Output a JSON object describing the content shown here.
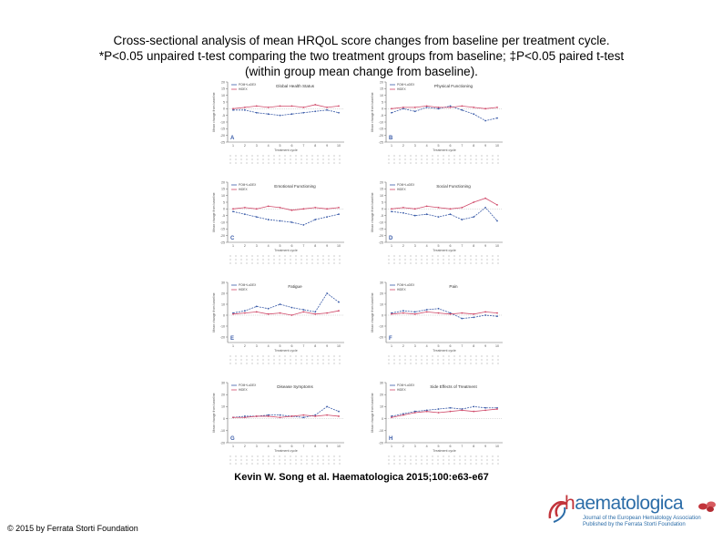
{
  "title": {
    "line1": "Cross-sectional analysis of mean HRQoL score changes from baseline per treatment cycle.",
    "line2": "*P<0.05 unpaired t-test comparing the two treatment groups from baseline; ‡P<0.05 paired t-test",
    "line3": "(within group mean change from baseline)."
  },
  "citation": "Kevin W. Song et al. Haematologica 2015;100:e63-e67",
  "copyright": "© 2015 by Ferrata Storti Foundation",
  "logo": {
    "word_h": "h",
    "word_rest": "aematologica",
    "tagline_1": "Journal of the European Hematology Association",
    "tagline_2": "Published by the Ferrata Storti Foundation"
  },
  "chart_data": [
    {
      "type": "line",
      "panel": "A",
      "title": "Global Health Status",
      "ylim": [
        -25,
        20
      ],
      "xlabel": "Treatment cycle",
      "categories": [
        "1",
        "2",
        "3",
        "4",
        "5",
        "6",
        "7",
        "8",
        "9",
        "10"
      ],
      "series": [
        {
          "name": "POM+LoDEX",
          "color": "#3a5ba8",
          "values": [
            -1,
            -1,
            -3,
            -4,
            -5,
            -4,
            -3,
            -2,
            -1,
            -3
          ]
        },
        {
          "name": "HiDEX",
          "color": "#d04a6a",
          "values": [
            0,
            1,
            2,
            1,
            2,
            2,
            1,
            3,
            1,
            2
          ]
        }
      ]
    },
    {
      "type": "line",
      "panel": "B",
      "title": "Physical Functioning",
      "ylim": [
        -25,
        20
      ],
      "xlabel": "Treatment cycle",
      "categories": [
        "1",
        "2",
        "3",
        "4",
        "5",
        "6",
        "7",
        "8",
        "9",
        "10"
      ],
      "series": [
        {
          "name": "POM+LoDEX",
          "color": "#3a5ba8",
          "values": [
            -3,
            0,
            -2,
            1,
            0,
            2,
            -1,
            -4,
            -9,
            -7
          ]
        },
        {
          "name": "HiDEX",
          "color": "#d04a6a",
          "values": [
            0,
            1,
            1,
            2,
            1,
            1,
            2,
            1,
            0,
            1
          ]
        }
      ]
    },
    {
      "type": "line",
      "panel": "C",
      "title": "Emotional Functioning",
      "ylim": [
        -25,
        20
      ],
      "xlabel": "Treatment cycle",
      "categories": [
        "1",
        "2",
        "3",
        "4",
        "5",
        "6",
        "7",
        "8",
        "9",
        "10"
      ],
      "series": [
        {
          "name": "POM+LoDEX",
          "color": "#3a5ba8",
          "values": [
            -2,
            -4,
            -6,
            -8,
            -9,
            -10,
            -12,
            -8,
            -6,
            -4
          ]
        },
        {
          "name": "HiDEX",
          "color": "#d04a6a",
          "values": [
            0,
            1,
            0,
            2,
            1,
            -1,
            0,
            1,
            0,
            1
          ]
        }
      ]
    },
    {
      "type": "line",
      "panel": "D",
      "title": "Social Functioning",
      "ylim": [
        -25,
        20
      ],
      "xlabel": "Treatment cycle",
      "categories": [
        "1",
        "2",
        "3",
        "4",
        "5",
        "6",
        "7",
        "8",
        "9",
        "10"
      ],
      "series": [
        {
          "name": "POM+LoDEX",
          "color": "#3a5ba8",
          "values": [
            -2,
            -3,
            -5,
            -4,
            -6,
            -4,
            -8,
            -6,
            1,
            -9
          ]
        },
        {
          "name": "HiDEX",
          "color": "#d04a6a",
          "values": [
            0,
            1,
            0,
            2,
            1,
            0,
            1,
            5,
            8,
            3
          ]
        }
      ]
    },
    {
      "type": "line",
      "panel": "E",
      "title": "Fatigue",
      "ylim": [
        -25,
        30
      ],
      "xlabel": "Treatment cycle",
      "categories": [
        "1",
        "2",
        "3",
        "4",
        "5",
        "6",
        "7",
        "8",
        "9",
        "10"
      ],
      "series": [
        {
          "name": "POM+LoDEX",
          "color": "#3a5ba8",
          "values": [
            2,
            4,
            8,
            6,
            10,
            7,
            5,
            3,
            20,
            12
          ]
        },
        {
          "name": "HiDEX",
          "color": "#d04a6a",
          "values": [
            1,
            2,
            3,
            1,
            2,
            0,
            3,
            1,
            2,
            4
          ]
        }
      ]
    },
    {
      "type": "line",
      "panel": "F",
      "title": "Pain",
      "ylim": [
        -25,
        30
      ],
      "xlabel": "Treatment cycle",
      "categories": [
        "1",
        "2",
        "3",
        "4",
        "5",
        "6",
        "7",
        "8",
        "9",
        "10"
      ],
      "series": [
        {
          "name": "POM+LoDEX",
          "color": "#3a5ba8",
          "values": [
            2,
            4,
            3,
            5,
            6,
            2,
            -3,
            -2,
            0,
            -1
          ]
        },
        {
          "name": "HiDEX",
          "color": "#d04a6a",
          "values": [
            1,
            2,
            1,
            3,
            2,
            1,
            2,
            1,
            3,
            2
          ]
        }
      ]
    },
    {
      "type": "line",
      "panel": "G",
      "title": "Disease Symptoms",
      "ylim": [
        -20,
        30
      ],
      "xlabel": "Treatment cycle",
      "categories": [
        "1",
        "2",
        "3",
        "4",
        "5",
        "6",
        "7",
        "8",
        "9",
        "10"
      ],
      "series": [
        {
          "name": "POM+LoDEX",
          "color": "#3a5ba8",
          "values": [
            1,
            2,
            2,
            3,
            3,
            2,
            1,
            3,
            10,
            6
          ]
        },
        {
          "name": "HiDEX",
          "color": "#d04a6a",
          "values": [
            1,
            1,
            2,
            2,
            1,
            2,
            3,
            2,
            3,
            2
          ]
        }
      ]
    },
    {
      "type": "line",
      "panel": "H",
      "title": "Side Effects of Treatment",
      "ylim": [
        -20,
        30
      ],
      "xlabel": "Treatment cycle",
      "categories": [
        "1",
        "2",
        "3",
        "4",
        "5",
        "6",
        "7",
        "8",
        "9",
        "10"
      ],
      "series": [
        {
          "name": "POM+LoDEX",
          "color": "#3a5ba8",
          "values": [
            2,
            4,
            6,
            7,
            8,
            9,
            8,
            10,
            9,
            9
          ]
        },
        {
          "name": "HiDEX",
          "color": "#d04a6a",
          "values": [
            1,
            3,
            5,
            6,
            5,
            6,
            7,
            6,
            7,
            8
          ]
        }
      ]
    }
  ]
}
